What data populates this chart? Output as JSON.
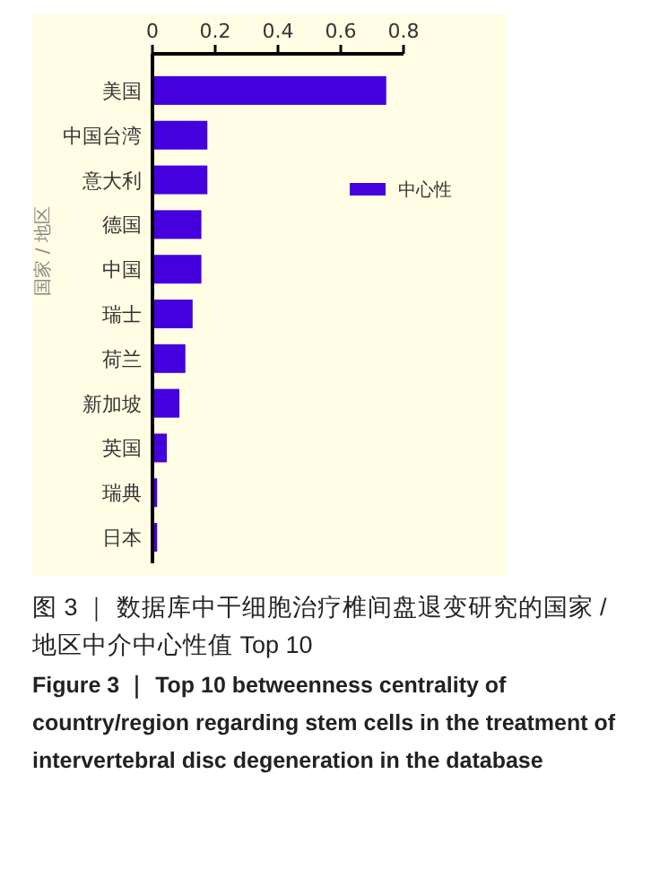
{
  "chart_data": {
    "type": "bar",
    "orientation": "horizontal",
    "ylabel": "国家 / 地区",
    "categories": [
      "美国",
      "中国台湾",
      "意大利",
      "德国",
      "中国",
      "瑞士",
      "荷兰",
      "新加坡",
      "英国",
      "瑞典",
      "日本"
    ],
    "series": [
      {
        "name": "中心性",
        "color": "#4400dd",
        "values": [
          0.745,
          0.175,
          0.175,
          0.156,
          0.156,
          0.128,
          0.105,
          0.086,
          0.046,
          0.015,
          0.015
        ]
      }
    ],
    "xlim": [
      0,
      0.8
    ],
    "xticks": [
      0,
      0.2,
      0.4,
      0.6,
      0.8
    ],
    "legend": "right",
    "grid": false,
    "annotations": [
      "图 3 ｜ 数据库中干细胞治疗椎间盘退变研究的国家 / 地区中介中心性值 Top 10",
      "Figure 3 ｜ Top 10 betweenness centrality of country/region regarding stem cells in the treatment of intervertebral disc degeneration in the database"
    ]
  }
}
